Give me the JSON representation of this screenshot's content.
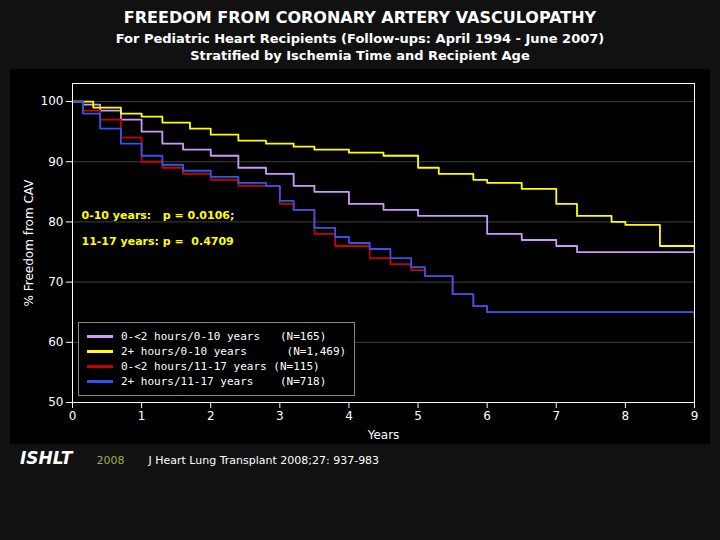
{
  "chart_data": {
    "type": "step",
    "title": "FREEDOM FROM CORONARY ARTERY VASCULOPATHY",
    "subtitle": [
      "For Pediatric Heart Recipients (Follow-ups: April 1994 - June 2007)",
      "Stratified by Ischemia Time and Recipient Age"
    ],
    "xlabel": "Years",
    "ylabel": "% Freedom from CAV",
    "xlim": [
      0,
      9
    ],
    "ylim": [
      50,
      103
    ],
    "xticks": [
      0,
      1,
      2,
      3,
      4,
      5,
      6,
      7,
      8,
      9
    ],
    "yticks": [
      50,
      60,
      70,
      80,
      90,
      100
    ],
    "grid": "y",
    "legend": "lower left",
    "annotations": [
      {
        "text": "0-10 years:   p = 0.0106;",
        "x": 0.13,
        "y": 80.5,
        "color": "#ffff00"
      },
      {
        "text": "11-17 years: p =  0.4709",
        "x": 0.13,
        "y": 77.5,
        "color": "#ffff00"
      }
    ],
    "footer": [
      "ISHLT",
      "2008",
      "J Heart Lung Transplant 2008;27: 937-983"
    ],
    "series": [
      {
        "name": "0-<2 hours/0-10 years   (N=165)",
        "color": "#cc99ff",
        "x": [
          0,
          0.15,
          0.4,
          0.7,
          1.0,
          1.3,
          1.6,
          2.0,
          2.4,
          2.8,
          3.2,
          3.5,
          4.0,
          4.5,
          5.0,
          5.5,
          6.0,
          6.5,
          7.0,
          7.3,
          9.0
        ],
        "values": [
          100,
          99.5,
          98.5,
          97,
          95,
          93,
          92,
          91,
          89,
          88,
          86,
          85,
          83,
          82,
          81,
          81,
          78,
          77,
          76,
          75,
          75
        ]
      },
      {
        "name": "2+ hours/0-10 years      (N=1,469)",
        "color": "#ffff00",
        "x": [
          0,
          0.3,
          0.7,
          1.0,
          1.3,
          1.7,
          2.0,
          2.4,
          2.8,
          3.2,
          3.5,
          4.0,
          4.5,
          5.0,
          5.3,
          5.8,
          6.0,
          6.5,
          7.0,
          7.3,
          7.8,
          8.0,
          8.5,
          9.0
        ],
        "values": [
          100,
          99,
          98,
          97.5,
          96.5,
          95.5,
          94.5,
          93.5,
          93,
          92.5,
          92,
          91.5,
          91,
          89,
          88,
          87,
          86.5,
          85.5,
          83,
          81,
          80,
          79.5,
          76,
          75
        ]
      },
      {
        "name": "0-<2 hours/11-17 years (N=115)",
        "color": "#cc0000",
        "x": [
          0,
          0.15,
          0.4,
          0.7,
          1.0,
          1.3,
          1.6,
          2.0,
          2.4,
          2.8,
          3.0,
          3.2,
          3.5,
          3.8,
          4.0,
          4.3,
          4.6,
          4.9,
          5.1,
          5.5,
          5.8,
          6.0,
          9.0
        ],
        "values": [
          100,
          98.5,
          97,
          94,
          90,
          89,
          88,
          87,
          86,
          86,
          83,
          82,
          78,
          76,
          76,
          74,
          73,
          72,
          71,
          68,
          66,
          65,
          65
        ]
      },
      {
        "name": "2+ hours/11-17 years    (N=718)",
        "color": "#3355ee",
        "x": [
          0,
          0.15,
          0.4,
          0.7,
          1.0,
          1.3,
          1.6,
          2.0,
          2.4,
          2.8,
          3.0,
          3.2,
          3.5,
          3.8,
          4.0,
          4.3,
          4.6,
          4.9,
          5.1,
          5.5,
          5.8,
          6.0,
          9.0
        ],
        "values": [
          100,
          98,
          95.5,
          93,
          91,
          89.5,
          88.5,
          87.5,
          86.5,
          86,
          83.5,
          82,
          79,
          77.5,
          76.5,
          75.5,
          74,
          72.5,
          71,
          68,
          66,
          65,
          64
        ]
      }
    ]
  }
}
